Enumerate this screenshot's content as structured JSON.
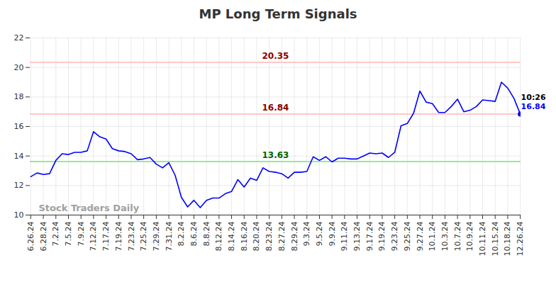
{
  "chart_data": {
    "type": "line",
    "title": "MP Long Term Signals",
    "categories": [
      "6.26.24",
      null,
      "6.28.24",
      null,
      "7.2.24",
      null,
      "7.5.24",
      null,
      "7.9.24",
      null,
      "7.12.24",
      null,
      "7.17.24",
      null,
      "7.19.24",
      null,
      "7.23.24",
      null,
      "7.25.24",
      null,
      "7.29.24",
      null,
      "7.31.24",
      null,
      "8.2.24",
      null,
      "8.6.24",
      null,
      "8.8.24",
      null,
      "8.12.24",
      null,
      "8.14.24",
      null,
      "8.16.24",
      null,
      "8.20.24",
      null,
      "8.23.24",
      null,
      "8.27.24",
      null,
      "8.29.24",
      null,
      "9.3.24",
      null,
      "9.5.24",
      null,
      "9.9.24",
      null,
      "9.11.24",
      null,
      "9.13.24",
      null,
      "9.17.24",
      null,
      "9.19.24",
      null,
      "9.23.24",
      null,
      "9.25.24",
      null,
      "9.27.24",
      null,
      "10.1.24",
      null,
      "10.3.24",
      null,
      "10.7.24",
      null,
      "10.9.24",
      null,
      "10.11.24",
      null,
      "10.15.24",
      null,
      "10.18.24",
      null,
      "12.26.24"
    ],
    "values": [
      12.6,
      12.85,
      12.75,
      12.8,
      13.7,
      14.15,
      14.1,
      14.25,
      14.25,
      14.35,
      15.65,
      15.3,
      15.15,
      14.5,
      14.35,
      14.3,
      14.15,
      13.75,
      13.8,
      13.9,
      13.45,
      13.2,
      13.55,
      12.7,
      11.2,
      10.55,
      11.0,
      10.5,
      11.0,
      11.15,
      11.15,
      11.45,
      11.6,
      12.4,
      11.9,
      12.5,
      12.35,
      13.2,
      12.95,
      12.9,
      12.8,
      12.5,
      12.9,
      12.9,
      12.95,
      13.95,
      13.7,
      13.95,
      13.6,
      13.85,
      13.85,
      13.8,
      13.8,
      14.0,
      14.2,
      14.15,
      14.2,
      13.9,
      14.25,
      16.05,
      16.2,
      16.9,
      18.4,
      17.65,
      17.55,
      16.95,
      16.95,
      17.35,
      17.85,
      17.0,
      17.1,
      17.35,
      17.8,
      17.75,
      17.7,
      19.0,
      18.6,
      17.9,
      16.84
    ],
    "color": "#0000ff",
    "ylim": [
      10,
      22
    ],
    "yticks": [
      10,
      12,
      14,
      16,
      18,
      20,
      22
    ],
    "grid": true,
    "levels": [
      {
        "value": 20.35,
        "color": "#ffc8c8",
        "text_color": "#8b0000"
      },
      {
        "value": 16.84,
        "color": "#ffc8c8",
        "text_color": "#8b0000"
      },
      {
        "value": 13.63,
        "color": "#90ee90",
        "text_color": "#006400"
      }
    ],
    "last_point": {
      "time": "10:26",
      "value": 16.84
    },
    "watermark": "Stock Traders Daily"
  }
}
